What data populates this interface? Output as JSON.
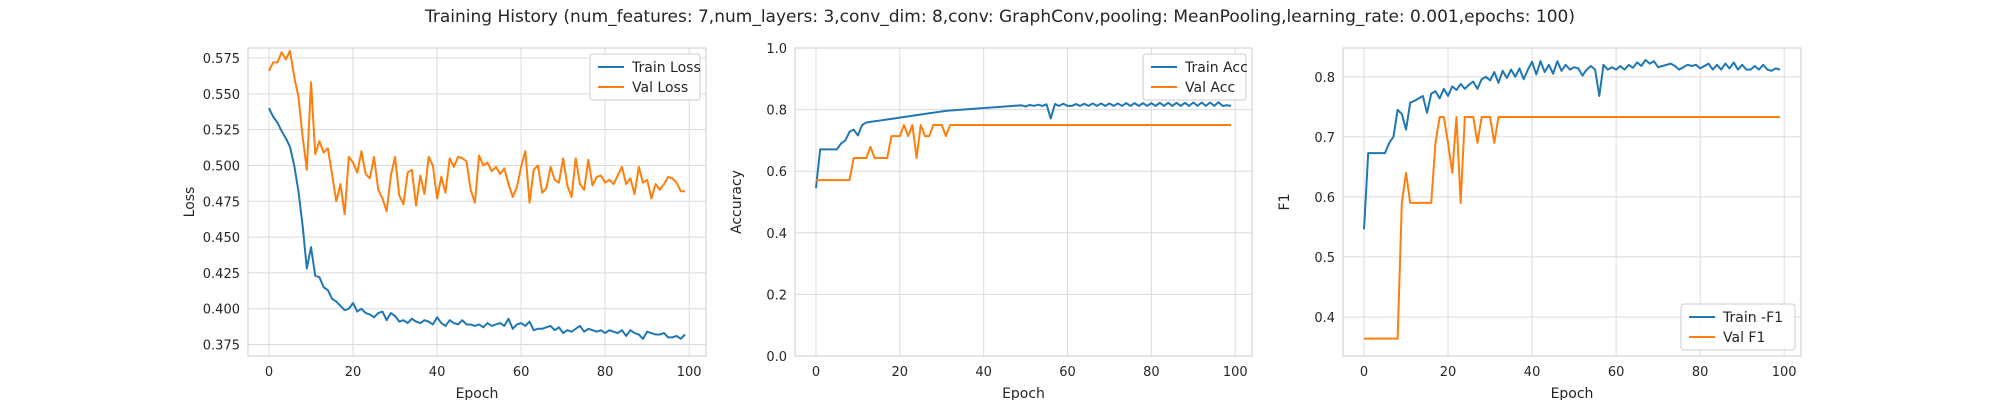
{
  "figure": {
    "title": "Training History (num_features: 7,num_layers: 3,conv_dim: 8,conv: GraphConv,pooling: MeanPooling,learning_rate: 0.001,epochs: 100)"
  },
  "colors": {
    "blue": "#1f77b4",
    "orange": "#ff7f0e",
    "grid": "#dcdcdc",
    "spine": "#cccccc"
  },
  "chart_data": [
    {
      "type": "line",
      "xlabel": "Epoch",
      "ylabel": "Loss",
      "xlim": [
        -5,
        104
      ],
      "ylim": [
        0.367,
        0.582
      ],
      "xticks": [
        0,
        20,
        40,
        60,
        80,
        100
      ],
      "yticks": [
        0.375,
        0.4,
        0.425,
        0.45,
        0.475,
        0.5,
        0.525,
        0.55,
        0.575
      ],
      "ytick_labels": [
        "0.375",
        "0.400",
        "0.425",
        "0.450",
        "0.475",
        "0.500",
        "0.525",
        "0.550",
        "0.575"
      ],
      "grid": true,
      "legend_position": "top-right",
      "series": [
        {
          "name": "Train Loss",
          "color": "#1f77b4",
          "values": [
            0.54,
            0.534,
            0.53,
            0.524,
            0.519,
            0.513,
            0.5,
            0.482,
            0.458,
            0.428,
            0.443,
            0.423,
            0.422,
            0.415,
            0.413,
            0.407,
            0.405,
            0.402,
            0.399,
            0.4,
            0.404,
            0.398,
            0.4,
            0.397,
            0.396,
            0.394,
            0.397,
            0.398,
            0.392,
            0.397,
            0.395,
            0.391,
            0.392,
            0.39,
            0.393,
            0.391,
            0.39,
            0.392,
            0.391,
            0.389,
            0.394,
            0.39,
            0.388,
            0.392,
            0.39,
            0.389,
            0.392,
            0.389,
            0.389,
            0.388,
            0.389,
            0.387,
            0.39,
            0.388,
            0.389,
            0.39,
            0.388,
            0.393,
            0.386,
            0.389,
            0.39,
            0.388,
            0.391,
            0.385,
            0.386,
            0.386,
            0.387,
            0.388,
            0.385,
            0.387,
            0.383,
            0.385,
            0.384,
            0.386,
            0.388,
            0.384,
            0.386,
            0.385,
            0.384,
            0.385,
            0.383,
            0.385,
            0.384,
            0.383,
            0.385,
            0.381,
            0.385,
            0.383,
            0.382,
            0.379,
            0.384,
            0.383,
            0.382,
            0.382,
            0.383,
            0.38,
            0.38,
            0.381,
            0.379,
            0.382
          ]
        },
        {
          "name": "Val Loss",
          "color": "#ff7f0e",
          "values": [
            0.566,
            0.572,
            0.572,
            0.579,
            0.574,
            0.58,
            0.562,
            0.548,
            0.52,
            0.497,
            0.558,
            0.508,
            0.517,
            0.509,
            0.512,
            0.494,
            0.475,
            0.487,
            0.466,
            0.506,
            0.502,
            0.495,
            0.51,
            0.494,
            0.491,
            0.506,
            0.483,
            0.477,
            0.468,
            0.493,
            0.506,
            0.479,
            0.473,
            0.495,
            0.497,
            0.472,
            0.493,
            0.48,
            0.506,
            0.5,
            0.477,
            0.492,
            0.481,
            0.505,
            0.499,
            0.506,
            0.505,
            0.503,
            0.483,
            0.474,
            0.507,
            0.5,
            0.502,
            0.496,
            0.499,
            0.494,
            0.498,
            0.487,
            0.478,
            0.485,
            0.499,
            0.51,
            0.474,
            0.497,
            0.5,
            0.481,
            0.484,
            0.499,
            0.49,
            0.488,
            0.505,
            0.486,
            0.478,
            0.505,
            0.487,
            0.483,
            0.504,
            0.486,
            0.492,
            0.493,
            0.488,
            0.49,
            0.487,
            0.493,
            0.499,
            0.487,
            0.491,
            0.48,
            0.499,
            0.488,
            0.49,
            0.477,
            0.487,
            0.483,
            0.487,
            0.492,
            0.491,
            0.488,
            0.482,
            0.482
          ]
        }
      ]
    },
    {
      "type": "line",
      "xlabel": "Epoch",
      "ylabel": "Accuracy",
      "xlim": [
        -5,
        104
      ],
      "ylim": [
        0.0,
        1.0
      ],
      "xticks": [
        0,
        20,
        40,
        60,
        80,
        100
      ],
      "yticks": [
        0.0,
        0.2,
        0.4,
        0.6,
        0.8,
        1.0
      ],
      "ytick_labels": [
        "0.0",
        "0.2",
        "0.4",
        "0.6",
        "0.8",
        "1.0"
      ],
      "grid": true,
      "legend_position": "top-right",
      "series": [
        {
          "name": "Train Acc",
          "color": "#1f77b4",
          "values": [
            0.545,
            0.671,
            0.671,
            0.671,
            0.671,
            0.671,
            0.69,
            0.7,
            0.728,
            0.735,
            0.716,
            0.75,
            0.758,
            0.76,
            0.762,
            0.764,
            0.766,
            0.768,
            0.77,
            0.772,
            0.774,
            0.776,
            0.778,
            0.78,
            0.782,
            0.784,
            0.786,
            0.788,
            0.79,
            0.792,
            0.794,
            0.796,
            0.797,
            0.798,
            0.799,
            0.8,
            0.801,
            0.802,
            0.803,
            0.804,
            0.805,
            0.806,
            0.807,
            0.808,
            0.809,
            0.81,
            0.811,
            0.812,
            0.813,
            0.814,
            0.81,
            0.815,
            0.812,
            0.816,
            0.812,
            0.817,
            0.771,
            0.818,
            0.812,
            0.819,
            0.812,
            0.812,
            0.818,
            0.812,
            0.819,
            0.812,
            0.82,
            0.812,
            0.82,
            0.812,
            0.82,
            0.812,
            0.82,
            0.812,
            0.821,
            0.812,
            0.821,
            0.812,
            0.821,
            0.812,
            0.821,
            0.812,
            0.822,
            0.812,
            0.822,
            0.812,
            0.822,
            0.812,
            0.822,
            0.812,
            0.823,
            0.812,
            0.823,
            0.812,
            0.823,
            0.812,
            0.824,
            0.812,
            0.814,
            0.812
          ]
        },
        {
          "name": "Val Acc",
          "color": "#ff7f0e",
          "values": [
            0.571,
            0.571,
            0.571,
            0.571,
            0.571,
            0.571,
            0.571,
            0.571,
            0.571,
            0.643,
            0.643,
            0.643,
            0.643,
            0.679,
            0.643,
            0.643,
            0.643,
            0.643,
            0.714,
            0.714,
            0.714,
            0.75,
            0.714,
            0.75,
            0.643,
            0.75,
            0.714,
            0.714,
            0.75,
            0.75,
            0.75,
            0.714,
            0.75,
            0.75,
            0.75,
            0.75,
            0.75,
            0.75,
            0.75,
            0.75,
            0.75,
            0.75,
            0.75,
            0.75,
            0.75,
            0.75,
            0.75,
            0.75,
            0.75,
            0.75,
            0.75,
            0.75,
            0.75,
            0.75,
            0.75,
            0.75,
            0.75,
            0.75,
            0.75,
            0.75,
            0.75,
            0.75,
            0.75,
            0.75,
            0.75,
            0.75,
            0.75,
            0.75,
            0.75,
            0.75,
            0.75,
            0.75,
            0.75,
            0.75,
            0.75,
            0.75,
            0.75,
            0.75,
            0.75,
            0.75,
            0.75,
            0.75,
            0.75,
            0.75,
            0.75,
            0.75,
            0.75,
            0.75,
            0.75,
            0.75,
            0.75,
            0.75,
            0.75,
            0.75,
            0.75,
            0.75,
            0.75,
            0.75,
            0.75,
            0.75
          ]
        }
      ]
    },
    {
      "type": "line",
      "xlabel": "Epoch",
      "ylabel": "F1",
      "xlim": [
        -5,
        104
      ],
      "ylim": [
        0.335,
        0.848
      ],
      "xticks": [
        0,
        20,
        40,
        60,
        80,
        100
      ],
      "yticks": [
        0.4,
        0.5,
        0.6,
        0.7,
        0.8
      ],
      "ytick_labels": [
        "0.4",
        "0.5",
        "0.6",
        "0.7",
        "0.8"
      ],
      "grid": true,
      "legend_position": "bottom-right",
      "series": [
        {
          "name": "Train -F1",
          "color": "#1f77b4",
          "values": [
            0.546,
            0.673,
            0.673,
            0.673,
            0.673,
            0.673,
            0.69,
            0.7,
            0.745,
            0.738,
            0.712,
            0.757,
            0.76,
            0.764,
            0.768,
            0.74,
            0.772,
            0.776,
            0.764,
            0.78,
            0.768,
            0.784,
            0.778,
            0.788,
            0.78,
            0.787,
            0.792,
            0.78,
            0.796,
            0.8,
            0.794,
            0.808,
            0.79,
            0.81,
            0.798,
            0.812,
            0.8,
            0.814,
            0.796,
            0.812,
            0.825,
            0.804,
            0.826,
            0.808,
            0.82,
            0.805,
            0.826,
            0.81,
            0.82,
            0.812,
            0.816,
            0.814,
            0.802,
            0.812,
            0.818,
            0.812,
            0.768,
            0.82,
            0.812,
            0.816,
            0.812,
            0.818,
            0.812,
            0.82,
            0.815,
            0.824,
            0.818,
            0.828,
            0.822,
            0.826,
            0.816,
            0.818,
            0.82,
            0.822,
            0.818,
            0.812,
            0.816,
            0.82,
            0.818,
            0.82,
            0.814,
            0.818,
            0.822,
            0.812,
            0.82,
            0.812,
            0.822,
            0.814,
            0.824,
            0.812,
            0.82,
            0.812,
            0.812,
            0.818,
            0.812,
            0.82,
            0.812,
            0.81,
            0.814,
            0.812
          ]
        },
        {
          "name": "Val F1",
          "color": "#ff7f0e",
          "values": [
            0.364,
            0.364,
            0.364,
            0.364,
            0.364,
            0.364,
            0.364,
            0.364,
            0.364,
            0.59,
            0.64,
            0.59,
            0.59,
            0.59,
            0.59,
            0.59,
            0.59,
            0.69,
            0.733,
            0.733,
            0.69,
            0.64,
            0.733,
            0.59,
            0.733,
            0.733,
            0.733,
            0.69,
            0.733,
            0.733,
            0.733,
            0.69,
            0.733,
            0.733,
            0.733,
            0.733,
            0.733,
            0.733,
            0.733,
            0.733,
            0.733,
            0.733,
            0.733,
            0.733,
            0.733,
            0.733,
            0.733,
            0.733,
            0.733,
            0.733,
            0.733,
            0.733,
            0.733,
            0.733,
            0.733,
            0.733,
            0.733,
            0.733,
            0.733,
            0.733,
            0.733,
            0.733,
            0.733,
            0.733,
            0.733,
            0.733,
            0.733,
            0.733,
            0.733,
            0.733,
            0.733,
            0.733,
            0.733,
            0.733,
            0.733,
            0.733,
            0.733,
            0.733,
            0.733,
            0.733,
            0.733,
            0.733,
            0.733,
            0.733,
            0.733,
            0.733,
            0.733,
            0.733,
            0.733,
            0.733,
            0.733,
            0.733,
            0.733,
            0.733,
            0.733,
            0.733,
            0.733,
            0.733,
            0.733,
            0.733
          ]
        }
      ]
    }
  ]
}
